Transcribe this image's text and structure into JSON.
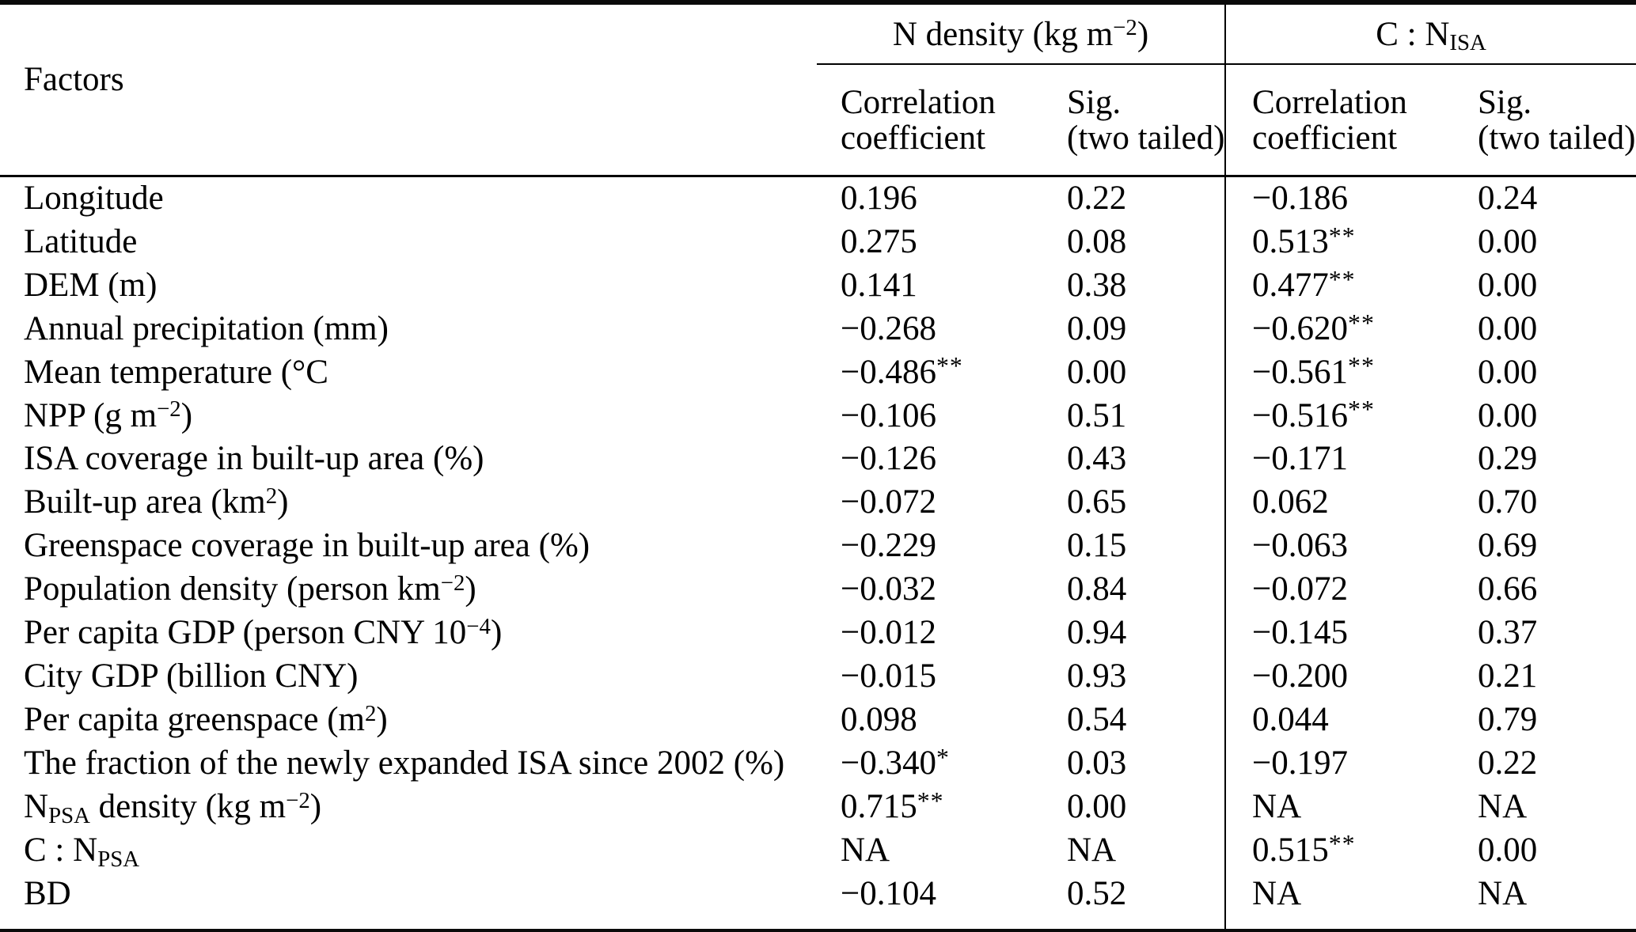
{
  "table": {
    "factors_header": "Factors",
    "groups": [
      {
        "label": [
          {
            "t": "N density (kg m"
          },
          {
            "sup": "−2"
          },
          {
            "t": ")"
          }
        ]
      },
      {
        "label": [
          {
            "t": "C : N"
          },
          {
            "sub": "ISA"
          }
        ]
      }
    ],
    "subheaders": {
      "correlation": "Correlation\ncoefficient",
      "sig": "Sig.\n(two tailed)"
    },
    "column_keys": [
      "ndensity_correlation",
      "ndensity_sig",
      "cn_isa_correlation",
      "cn_isa_sig"
    ],
    "rows": [
      {
        "factor": [
          {
            "t": "Longitude"
          }
        ],
        "values": [
          "0.196",
          "0.22",
          "−0.186",
          "0.24"
        ]
      },
      {
        "factor": [
          {
            "t": "Latitude"
          }
        ],
        "values": [
          "0.275",
          "0.08",
          "0.513**",
          "0.00"
        ]
      },
      {
        "factor": [
          {
            "t": "DEM (m)"
          }
        ],
        "values": [
          "0.141",
          "0.38",
          "0.477**",
          "0.00"
        ]
      },
      {
        "factor": [
          {
            "t": "Annual precipitation (mm)"
          }
        ],
        "values": [
          "−0.268",
          "0.09",
          "−0.620**",
          "0.00"
        ]
      },
      {
        "factor": [
          {
            "t": "Mean temperature (°C"
          }
        ],
        "values": [
          "−0.486**",
          "0.00",
          "−0.561**",
          "0.00"
        ]
      },
      {
        "factor": [
          {
            "t": "NPP (g m"
          },
          {
            "sup": "−2"
          },
          {
            "t": ")"
          }
        ],
        "values": [
          "−0.106",
          "0.51",
          "−0.516**",
          "0.00"
        ]
      },
      {
        "factor": [
          {
            "t": "ISA coverage in built-up area (%)"
          }
        ],
        "values": [
          "−0.126",
          "0.43",
          "−0.171",
          "0.29"
        ]
      },
      {
        "factor": [
          {
            "t": "Built-up area (km"
          },
          {
            "sup": "2"
          },
          {
            "t": ")"
          }
        ],
        "values": [
          "−0.072",
          "0.65",
          "0.062",
          "0.70"
        ]
      },
      {
        "factor": [
          {
            "t": "Greenspace coverage in built-up area (%)"
          }
        ],
        "values": [
          "−0.229",
          "0.15",
          "−0.063",
          "0.69"
        ]
      },
      {
        "factor": [
          {
            "t": "Population density (person km"
          },
          {
            "sup": "−2"
          },
          {
            "t": ")"
          }
        ],
        "values": [
          "−0.032",
          "0.84",
          "−0.072",
          "0.66"
        ]
      },
      {
        "factor": [
          {
            "t": "Per capita GDP (person CNY 10"
          },
          {
            "sup": "−4"
          },
          {
            "t": ")"
          }
        ],
        "values": [
          "−0.012",
          "0.94",
          "−0.145",
          "0.37"
        ]
      },
      {
        "factor": [
          {
            "t": "City GDP (billion CNY)"
          }
        ],
        "values": [
          "−0.015",
          "0.93",
          "−0.200",
          "0.21"
        ]
      },
      {
        "factor": [
          {
            "t": "Per capita greenspace (m"
          },
          {
            "sup": "2"
          },
          {
            "t": ")"
          }
        ],
        "values": [
          "0.098",
          "0.54",
          "0.044",
          "0.79"
        ]
      },
      {
        "factor": [
          {
            "t": "The fraction of the newly expanded ISA since 2002 (%)"
          }
        ],
        "values": [
          "−0.340*",
          "0.03",
          "−0.197",
          "0.22"
        ]
      },
      {
        "factor": [
          {
            "t": "N"
          },
          {
            "sub": "PSA"
          },
          {
            "t": " density (kg m"
          },
          {
            "sup": "−2"
          },
          {
            "t": ")"
          }
        ],
        "values": [
          "0.715**",
          "0.00",
          "NA",
          "NA"
        ]
      },
      {
        "factor": [
          {
            "t": "C : N"
          },
          {
            "sub": "PSA"
          }
        ],
        "values": [
          "NA",
          "NA",
          "0.515**",
          "0.00"
        ]
      },
      {
        "factor": [
          {
            "t": "BD"
          }
        ],
        "values": [
          "−0.104",
          "0.52",
          "NA",
          "NA"
        ]
      }
    ]
  }
}
